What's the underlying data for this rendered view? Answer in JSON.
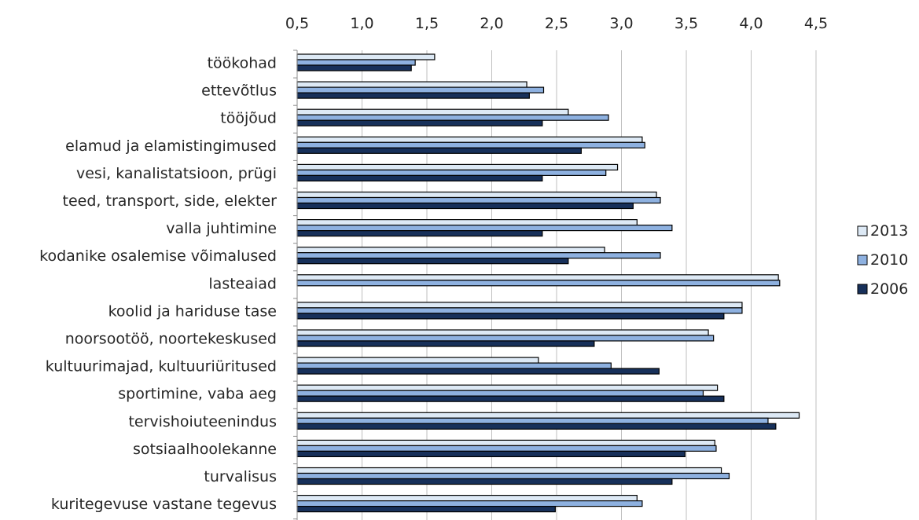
{
  "chart_data": {
    "type": "bar",
    "orientation": "horizontal",
    "categories": [
      "töökohad",
      "ettevõtlus",
      "tööjõud",
      "elamud ja elamistingimused",
      "vesi, kanalistatsioon, prügi",
      "teed, transport, side, elekter",
      "valla juhtimine",
      "kodanike osalemise võimalused",
      "lasteaiad",
      "koolid ja hariduse tase",
      "noorsootöö, noortekeskused",
      "kultuurimajad, kultuuriüritused",
      "sportimine, vaba aeg",
      "tervishoiuteenindus",
      "sotsiaalhoolekanne",
      "turvalisus",
      "kuritegevuse vastane tegevus"
    ],
    "series": [
      {
        "name": "2013",
        "color": "#dde9f5",
        "values": [
          1.56,
          2.27,
          2.59,
          3.16,
          2.97,
          3.27,
          3.12,
          2.87,
          4.21,
          3.93,
          3.67,
          2.36,
          3.74,
          4.37,
          3.72,
          3.77,
          3.12
        ]
      },
      {
        "name": "2010",
        "color": "#8eb1e0",
        "values": [
          1.41,
          2.4,
          2.9,
          3.18,
          2.88,
          3.3,
          3.39,
          3.3,
          4.22,
          3.93,
          3.71,
          2.92,
          3.63,
          4.13,
          3.73,
          3.83,
          3.16
        ]
      },
      {
        "name": "2006",
        "color": "#17305a",
        "values": [
          1.38,
          2.29,
          2.39,
          2.69,
          2.39,
          3.09,
          2.39,
          2.59,
          null,
          3.79,
          2.79,
          3.29,
          3.79,
          4.19,
          3.49,
          3.39,
          2.49
        ]
      }
    ],
    "xaxis": {
      "min": 0.5,
      "max": 4.5,
      "ticks": [
        "0,5",
        "1,0",
        "1,5",
        "2,0",
        "2,5",
        "3,0",
        "3,5",
        "4,0",
        "4,5"
      ],
      "position": "top"
    },
    "grid": "vertical",
    "legend": "right"
  }
}
